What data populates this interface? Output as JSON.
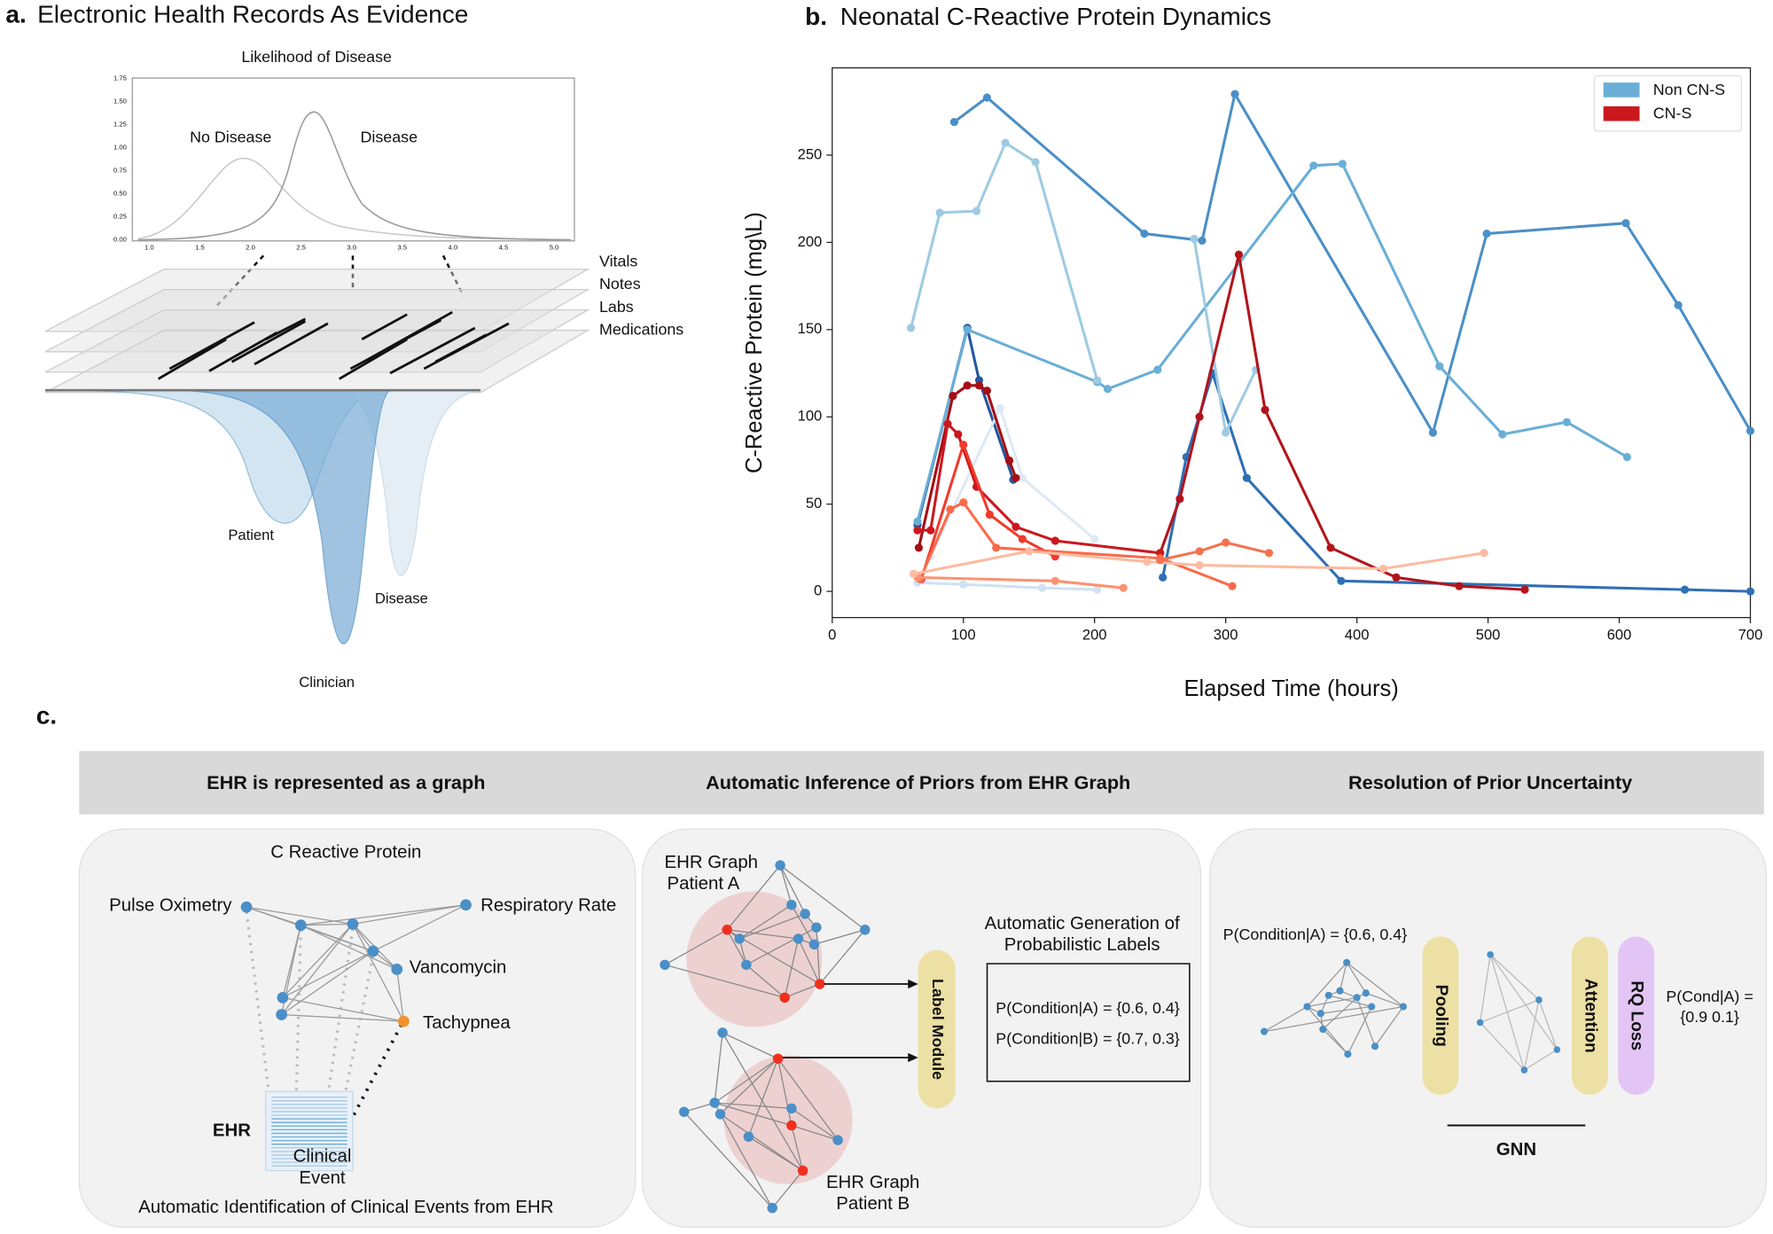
{
  "panel_a": {
    "label": "a.",
    "title": "Electronic Health Records As Evidence",
    "plot_title": "Likelihood of Disease",
    "xtick_labels": [
      "1.0",
      "1.5",
      "2.0",
      "2.5",
      "3.0",
      "3.5",
      "4.0",
      "4.5",
      "5.0"
    ],
    "ytick_labels": [
      "0.00",
      "0.25",
      "0.50",
      "0.75",
      "1.00",
      "1.25",
      "1.50",
      "1.75"
    ],
    "curve_labels": [
      "No Disease",
      "Disease"
    ],
    "layers": [
      "Vitals",
      "Notes",
      "Labs",
      "Medications"
    ],
    "distributions": [
      "Patient",
      "Clinician",
      "Disease"
    ]
  },
  "chart_data": {
    "type": "line",
    "label": "b.",
    "title": "Neonatal C-Reactive Protein Dynamics",
    "x_label": "Elapsed Time (hours)",
    "y_label": "C-Reactive Protein (mg\\L)",
    "xlim": [
      0,
      700
    ],
    "ylim": [
      -15,
      300
    ],
    "xticks": [
      0,
      100,
      200,
      300,
      400,
      500,
      600,
      700
    ],
    "yticks": [
      0,
      50,
      100,
      150,
      200,
      250
    ],
    "legend": "upper right",
    "series": [
      {
        "name": "Non CN-S",
        "color": "#6aaed6",
        "lines": [
          {
            "color": "#4a8fc7",
            "x": [
              93,
              118,
              238,
              282,
              307,
              458,
              499,
              605,
              645,
              700
            ],
            "values": [
              269,
              283,
              205,
              201,
              285,
              91,
              205,
              211,
              164,
              92
            ]
          },
          {
            "color": "#2f6fb3",
            "x": [
              252,
              270,
              290,
              316,
              388,
              650,
              700
            ],
            "values": [
              8,
              77,
              125,
              65,
              6,
              1,
              0
            ]
          },
          {
            "color": "#2357a0",
            "x": [
              65,
              103,
              112,
              138
            ],
            "values": [
              38,
              151,
              121,
              64
            ]
          },
          {
            "color": "#6aaed6",
            "x": [
              65,
              103,
              202,
              210,
              248,
              367,
              389,
              463,
              511,
              560,
              606
            ],
            "values": [
              40,
              150,
              120,
              116,
              127,
              244,
              245,
              129,
              90,
              97,
              77
            ]
          },
          {
            "color": "#9ecae1",
            "x": [
              60,
              82,
              110,
              132,
              155,
              202
            ],
            "values": [
              151,
              217,
              218,
              257,
              246,
              121
            ]
          },
          {
            "color": "#9ecae1",
            "x": [
              276,
              300,
              323
            ],
            "values": [
              202,
              91,
              127
            ]
          },
          {
            "color": "#d0e1f2",
            "x": [
              65,
              100,
              160,
              202
            ],
            "values": [
              5,
              4,
              2,
              1
            ]
          },
          {
            "color": "#dde9f5",
            "x": [
              75,
              128,
              145,
              200
            ],
            "values": [
              20,
              105,
              65,
              30
            ]
          }
        ]
      },
      {
        "name": "CN-S",
        "color": "#cb181d",
        "lines": [
          {
            "color": "#a50f15",
            "x": [
              66,
              92,
              103,
              112,
              118,
              135,
              140
            ],
            "values": [
              25,
              112,
              118,
              118,
              115,
              75,
              65
            ]
          },
          {
            "color": "#b3141a",
            "x": [
              250,
              265,
              280,
              310,
              330,
              380,
              430,
              478,
              528
            ],
            "values": [
              22,
              53,
              100,
              193,
              104,
              25,
              8,
              3,
              1
            ]
          },
          {
            "color": "#cb181d",
            "x": [
              65,
              75,
              88,
              96,
              110,
              140,
              170,
              250
            ],
            "values": [
              35,
              35,
              96,
              90,
              60,
              37,
              29,
              22
            ]
          },
          {
            "color": "#ef3b2c",
            "x": [
              68,
              100,
              120,
              145,
              170
            ],
            "values": [
              7,
              84,
              44,
              30,
              20
            ]
          },
          {
            "color": "#fb6a4a",
            "x": [
              67,
              90,
              100,
              125,
              250,
              305
            ],
            "values": [
              7,
              47,
              51,
              25,
              19,
              3
            ]
          },
          {
            "color": "#fc9272",
            "x": [
              65,
              170,
              222
            ],
            "values": [
              8,
              6,
              2
            ]
          },
          {
            "color": "#fcbba1",
            "x": [
              62,
              150,
              240,
              280,
              420,
              497
            ],
            "values": [
              10,
              23,
              17,
              15,
              13,
              22
            ]
          },
          {
            "color": "#f4724f",
            "x": [
              250,
              280,
              300,
              333
            ],
            "values": [
              18,
              23,
              28,
              22
            ]
          }
        ]
      }
    ]
  },
  "panel_c": {
    "label": "c.",
    "headers": [
      "EHR is represented as  a graph",
      "Automatic Inference of Priors from EHR Graph",
      "Resolution of Prior Uncertainty"
    ],
    "graph_box": {
      "nodes": [
        "C Reactive Protein",
        "Pulse Oximetry",
        "Respiratory Rate",
        "Vancomycin",
        "Tachypnea"
      ],
      "ehr": "EHR",
      "event": [
        "Clinical",
        "Event"
      ],
      "caption": "Automatic  Identification of Clinical Events from EHR"
    },
    "inference_box": {
      "graph_a": [
        "EHR Graph",
        "Patient A"
      ],
      "graph_b": [
        "EHR Graph",
        "Patient B"
      ],
      "module": "Label Module",
      "heading": [
        "Automatic Generation of",
        "Probabilistic Labels"
      ],
      "labels": [
        "P(Condition|A) = {0.6, 0.4}",
        "P(Condition|B) = {0.7, 0.3}"
      ]
    },
    "resolution_box": {
      "prior": "P(Condition|A) = {0.6, 0.4}",
      "pooling": "Pooling",
      "attention": "Attention",
      "loss": "RQ Loss",
      "posterior": [
        "P(Cond|A) =",
        "{0.9 0.1}"
      ],
      "gnn": "GNN"
    }
  }
}
